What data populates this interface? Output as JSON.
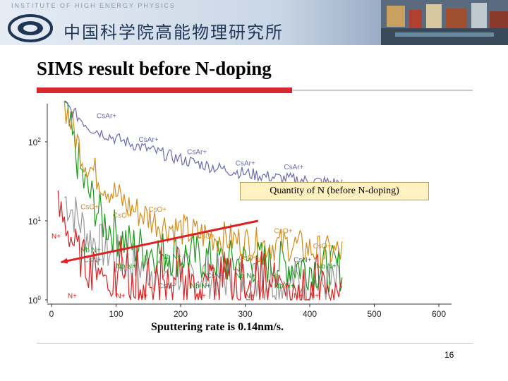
{
  "banner": {
    "institute_en": "INSTITUTE OF HIGH ENERGY PHYSICS",
    "institute_cn": "中国科学院高能物理研究所"
  },
  "slide": {
    "title": "SIMS result before N-doping",
    "callout": "Quantity of N (before N-doping)",
    "caption": "Sputtering rate is 0.14nm/s.",
    "page_number": "16"
  },
  "colors": {
    "accent_red": "#d7282f",
    "CsAr": "#6b6bb4",
    "CsO": "#d68c1a",
    "NbN": "#1a9a1a",
    "CsN": "#9a9a9a",
    "N": "#e02020"
  },
  "chart_data": {
    "type": "line",
    "y_scale": "log",
    "ylim": [
      1,
      300
    ],
    "xlim": [
      0,
      620
    ],
    "x_ticks": [
      0,
      100,
      200,
      300,
      400,
      500,
      600
    ],
    "y_tick_labels": [
      "10^0",
      "10^1",
      "10^2"
    ],
    "series": [
      {
        "name": "CsAr+",
        "color": "#6b6bb4",
        "x": [
          20,
          60,
          100,
          150,
          200,
          250,
          300,
          350,
          400,
          450
        ],
        "y": [
          300,
          150,
          110,
          80,
          60,
          48,
          40,
          35,
          32,
          30
        ]
      },
      {
        "name": "CsO+",
        "color": "#d68c1a",
        "x": [
          20,
          50,
          80,
          120,
          170,
          220,
          270,
          320,
          370,
          420,
          450
        ],
        "y": [
          300,
          60,
          30,
          15,
          9,
          7,
          6,
          5,
          5,
          4,
          4
        ]
      },
      {
        "name": "NbN+",
        "color": "#1a9a1a",
        "x": [
          20,
          50,
          80,
          120,
          170,
          220,
          270,
          320,
          370,
          420,
          450
        ],
        "y": [
          250,
          30,
          10,
          5,
          4,
          3.5,
          3,
          3,
          2.8,
          2.5,
          2.5
        ]
      },
      {
        "name": "CsN+",
        "color": "#9a9a9a",
        "x": [
          20,
          60,
          100,
          150,
          200,
          250,
          300,
          350,
          400,
          450
        ],
        "y": [
          20,
          6,
          3.5,
          2.5,
          2.2,
          2,
          1.8,
          1.8,
          1.6,
          1.5
        ]
      },
      {
        "name": "N+",
        "color": "#e02020",
        "x": [
          10,
          25,
          40,
          60,
          90,
          130,
          180,
          230,
          280,
          330,
          380,
          430,
          450
        ],
        "y": [
          14,
          8,
          4,
          2.5,
          1.8,
          1.3,
          1.2,
          1.15,
          1.1,
          1.1,
          1.05,
          1.1,
          1.05
        ]
      }
    ],
    "annotations": [
      {
        "text": "CsAr+",
        "x": 70,
        "y": 200
      },
      {
        "text": "CsAr+",
        "x": 135,
        "y": 100
      },
      {
        "text": "CsAr+",
        "x": 210,
        "y": 70
      },
      {
        "text": "CsAr+",
        "x": 285,
        "y": 50
      },
      {
        "text": "CsAr+",
        "x": 360,
        "y": 45
      },
      {
        "text": "CsO+",
        "x": 45,
        "y": 14
      },
      {
        "text": "CsO+",
        "x": 95,
        "y": 11
      },
      {
        "text": "CsO+",
        "x": 150,
        "y": 13
      },
      {
        "text": "CsO+",
        "x": 225,
        "y": 6
      },
      {
        "text": "CsO+",
        "x": 290,
        "y": 3.2
      },
      {
        "text": "CsO+",
        "x": 345,
        "y": 7
      },
      {
        "text": "CsO+",
        "x": 405,
        "y": 4.5
      },
      {
        "text": "Nb N+",
        "x": 45,
        "y": 4
      },
      {
        "text": "Nb N+",
        "x": 170,
        "y": 3.3
      },
      {
        "text": "Nb N+",
        "x": 100,
        "y": 2.5
      },
      {
        "text": "Nb N+",
        "x": 285,
        "y": 1.9
      },
      {
        "text": "Nb N+",
        "x": 215,
        "y": 1.4
      },
      {
        "text": "Nb N+",
        "x": 345,
        "y": 1.4
      },
      {
        "text": "Nb N+",
        "x": 410,
        "y": 2.5
      },
      {
        "text": "CsN+",
        "x": 50,
        "y": 3
      },
      {
        "text": "CsN+",
        "x": 240,
        "y": 1.9
      },
      {
        "text": "CsN+",
        "x": 375,
        "y": 3
      },
      {
        "text": "CsN+",
        "x": 165,
        "y": 1.4
      },
      {
        "text": "N+",
        "x": 0,
        "y": 6
      },
      {
        "text": "N+",
        "x": 25,
        "y": 1.05
      },
      {
        "text": "N+",
        "x": 100,
        "y": 1.05
      },
      {
        "text": "N+",
        "x": 135,
        "y": 1.05
      },
      {
        "text": "N+",
        "x": 225,
        "y": 1.05
      },
      {
        "text": "N+",
        "x": 300,
        "y": 1.05
      },
      {
        "text": "N+",
        "x": 375,
        "y": 1.05
      },
      {
        "text": "N+",
        "x": 400,
        "y": 1.05
      }
    ],
    "arrow": {
      "from": [
        320,
        10
      ],
      "to": [
        15,
        3
      ]
    }
  }
}
